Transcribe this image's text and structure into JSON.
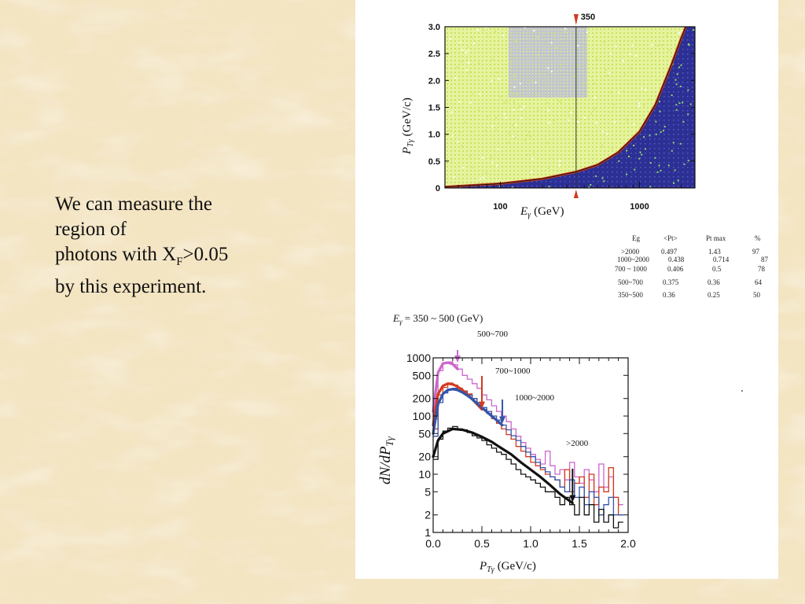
{
  "slide": {
    "text_line1": "We can measure the",
    "text_line2": "region of",
    "text_line3a": "photons with X",
    "text_line3sub": "F",
    "text_line3b": ">0.05",
    "text_line4": "by this experiment."
  },
  "colors": {
    "background": "#f3e4c2",
    "figure_bg": "#ffffff",
    "scatter_yellow": "#cfe86a",
    "scatter_blue": "#2c2f94",
    "scatter_lavender": "#a8a6e0",
    "boundary_red": "#d23a1c",
    "pink": "#cc66cc",
    "orange": "#e07a1a",
    "blue": "#3355aa",
    "black": "#111111"
  },
  "chart_data": [
    {
      "type": "scatter",
      "xlabel_var": "E",
      "xlabel_sub": "γ",
      "xlabel_unit": "(GeV)",
      "ylabel_var": "P",
      "ylabel_sub": "Tγ",
      "ylabel_unit": "(GeV/c)",
      "x_scale": "log",
      "xlim": [
        40,
        2500
      ],
      "ylim": [
        0,
        3.0
      ],
      "xticklabels": [
        "100",
        "1000"
      ],
      "xtickvalues": [
        100,
        1000
      ],
      "yticklabels": [
        "0",
        "0.5",
        "1.0",
        "1.5",
        "2.0",
        "2.5",
        "3.0"
      ],
      "ytickvalues": [
        0,
        0.5,
        1.0,
        1.5,
        2.0,
        2.5,
        3.0
      ],
      "marker_label": "350",
      "marker_x": 350,
      "boundary_curve": {
        "x": [
          40,
          100,
          200,
          350,
          500,
          700,
          1000,
          1300,
          1700,
          2000,
          2150
        ],
        "y": [
          0.02,
          0.08,
          0.17,
          0.3,
          0.43,
          0.66,
          1.05,
          1.55,
          2.3,
          2.8,
          3.0
        ]
      },
      "legend": "none",
      "grid": false
    },
    {
      "type": "table",
      "headers": [
        "Eg",
        "<Pt>",
        "Pt max",
        "%"
      ],
      "rows": [
        [
          ">2000",
          "0.497",
          "1.43",
          "97"
        ],
        [
          "1000~2000",
          "0.438",
          "0.714",
          "87"
        ],
        [
          "700 ~ 1000",
          "0.406",
          "0.5",
          "78"
        ],
        [
          "500~700",
          "0.375",
          "0.36",
          "64"
        ],
        [
          "350~500",
          "0.36",
          "0.25",
          "50"
        ]
      ]
    },
    {
      "type": "line",
      "title_text": "E",
      "title_sub": "γ",
      "title_rest": " = 350 ~ 500 (GeV)",
      "ylabel": "dN/dP",
      "ylabel_sub": "Tγ",
      "xlabel_var": "P",
      "xlabel_sub": "Tγ",
      "xlabel_unit": "(GeV/c)",
      "y_scale": "log",
      "xlim": [
        0,
        2.0
      ],
      "ylim": [
        1,
        1000
      ],
      "xticklabels": [
        "0.0",
        "0.5",
        "1.0",
        "1.5",
        "2.0"
      ],
      "xtickvalues": [
        0,
        0.5,
        1.0,
        1.5,
        2.0
      ],
      "yticklabels": [
        "1",
        "2",
        "5",
        "10",
        "20",
        "50",
        "100",
        "200",
        "500",
        "1000"
      ],
      "ytickvalues": [
        1,
        2,
        5,
        10,
        20,
        50,
        100,
        200,
        500,
        1000
      ],
      "annotations": [
        {
          "text": "500~700",
          "x": 0.25,
          "color": "#cc66cc"
        },
        {
          "text": "700~1000",
          "x": 0.5,
          "color": "#d23a1c"
        },
        {
          "text": "1000~2000",
          "x": 0.71,
          "color": "#3355aa"
        },
        {
          "text": ">2000",
          "x": 1.43,
          "color": "#111111"
        }
      ],
      "series": [
        {
          "color": "#cc66cc",
          "fit_x": [
            0,
            0.05,
            0.1,
            0.15,
            0.2,
            0.25
          ],
          "fit_y": [
            120,
            560,
            800,
            830,
            780,
            640
          ],
          "hist_x": [
            0,
            0.05,
            0.1,
            0.15,
            0.2,
            0.25,
            0.3,
            0.35,
            0.4,
            0.45,
            0.5,
            0.55,
            0.6,
            0.65,
            0.7,
            0.75,
            0.8,
            0.85,
            0.9,
            0.95,
            1.0,
            1.05,
            1.1,
            1.15,
            1.2,
            1.25,
            1.3,
            1.35,
            1.4,
            1.45,
            1.5,
            1.55,
            1.6,
            1.65,
            1.7,
            1.75,
            1.8,
            1.85,
            1.9
          ],
          "hist_y": [
            90,
            600,
            820,
            850,
            760,
            640,
            500,
            430,
            360,
            300,
            230,
            190,
            150,
            120,
            100,
            80,
            60,
            45,
            35,
            28,
            22,
            18,
            15,
            25,
            14,
            10,
            12,
            8,
            16,
            9,
            7,
            12,
            8,
            5,
            15,
            6,
            9,
            4,
            3
          ]
        },
        {
          "color": "#d23a1c",
          "fit_x": [
            0,
            0.05,
            0.1,
            0.15,
            0.2,
            0.25,
            0.3,
            0.35,
            0.4,
            0.45,
            0.5
          ],
          "fit_y": [
            70,
            240,
            330,
            360,
            350,
            320,
            280,
            235,
            195,
            160,
            130
          ],
          "hist_x": [
            0,
            0.05,
            0.1,
            0.15,
            0.2,
            0.25,
            0.3,
            0.35,
            0.4,
            0.45,
            0.5,
            0.55,
            0.6,
            0.65,
            0.7,
            0.75,
            0.8,
            0.85,
            0.9,
            0.95,
            1.0,
            1.05,
            1.1,
            1.15,
            1.2,
            1.25,
            1.3,
            1.35,
            1.4,
            1.45,
            1.5,
            1.55,
            1.6,
            1.65,
            1.7,
            1.75,
            1.8,
            1.85,
            1.9
          ],
          "hist_y": [
            60,
            230,
            310,
            370,
            340,
            300,
            270,
            240,
            200,
            170,
            130,
            110,
            90,
            75,
            60,
            48,
            40,
            30,
            25,
            20,
            16,
            14,
            12,
            10,
            9,
            8,
            6,
            12,
            5,
            7,
            9,
            4,
            10,
            3,
            6,
            5,
            13,
            4,
            2
          ]
        },
        {
          "color": "#3355aa",
          "fit_x": [
            0,
            0.05,
            0.1,
            0.15,
            0.2,
            0.25,
            0.3,
            0.35,
            0.4,
            0.45,
            0.5,
            0.55,
            0.6,
            0.65,
            0.7,
            0.71
          ],
          "fit_y": [
            50,
            160,
            240,
            280,
            290,
            280,
            255,
            225,
            195,
            165,
            140,
            118,
            100,
            85,
            72,
            70
          ],
          "hist_x": [
            0,
            0.05,
            0.1,
            0.15,
            0.2,
            0.25,
            0.3,
            0.35,
            0.4,
            0.45,
            0.5,
            0.55,
            0.6,
            0.65,
            0.7,
            0.75,
            0.8,
            0.85,
            0.9,
            0.95,
            1.0,
            1.05,
            1.1,
            1.15,
            1.2,
            1.25,
            1.3,
            1.35,
            1.4,
            1.45,
            1.5,
            1.55,
            1.6,
            1.65,
            1.7,
            1.75,
            1.8,
            1.85,
            1.9
          ],
          "hist_y": [
            45,
            170,
            250,
            290,
            300,
            280,
            260,
            230,
            200,
            170,
            140,
            120,
            100,
            85,
            70,
            58,
            46,
            38,
            30,
            24,
            20,
            16,
            13,
            11,
            9,
            8,
            6,
            5,
            8,
            4,
            6,
            3,
            5,
            4,
            2,
            3,
            4,
            2,
            2
          ]
        },
        {
          "color": "#111111",
          "fit_x": [
            0,
            0.05,
            0.1,
            0.2,
            0.3,
            0.4,
            0.5,
            0.6,
            0.7,
            0.8,
            0.9,
            1.0,
            1.1,
            1.2,
            1.3,
            1.43
          ],
          "fit_y": [
            20,
            38,
            50,
            60,
            58,
            52,
            44,
            36,
            28,
            22,
            16,
            12,
            9,
            6.5,
            4.6,
            3.2
          ],
          "hist_x": [
            0,
            0.05,
            0.1,
            0.15,
            0.2,
            0.25,
            0.3,
            0.35,
            0.4,
            0.45,
            0.5,
            0.55,
            0.6,
            0.65,
            0.7,
            0.75,
            0.8,
            0.85,
            0.9,
            0.95,
            1.0,
            1.05,
            1.1,
            1.15,
            1.2,
            1.25,
            1.3,
            1.35,
            1.4,
            1.45,
            1.5,
            1.55,
            1.6,
            1.65,
            1.7,
            1.75,
            1.8,
            1.85,
            1.9
          ],
          "hist_y": [
            18,
            40,
            55,
            62,
            66,
            60,
            58,
            52,
            46,
            42,
            38,
            32,
            28,
            24,
            22,
            18,
            15,
            12,
            10,
            9,
            8,
            7,
            6,
            5,
            5,
            4,
            3,
            4,
            3,
            2,
            4,
            2,
            3,
            1.5,
            2.5,
            1.5,
            2,
            1.2,
            1.5
          ]
        }
      ],
      "legend": "none",
      "grid": false
    }
  ]
}
